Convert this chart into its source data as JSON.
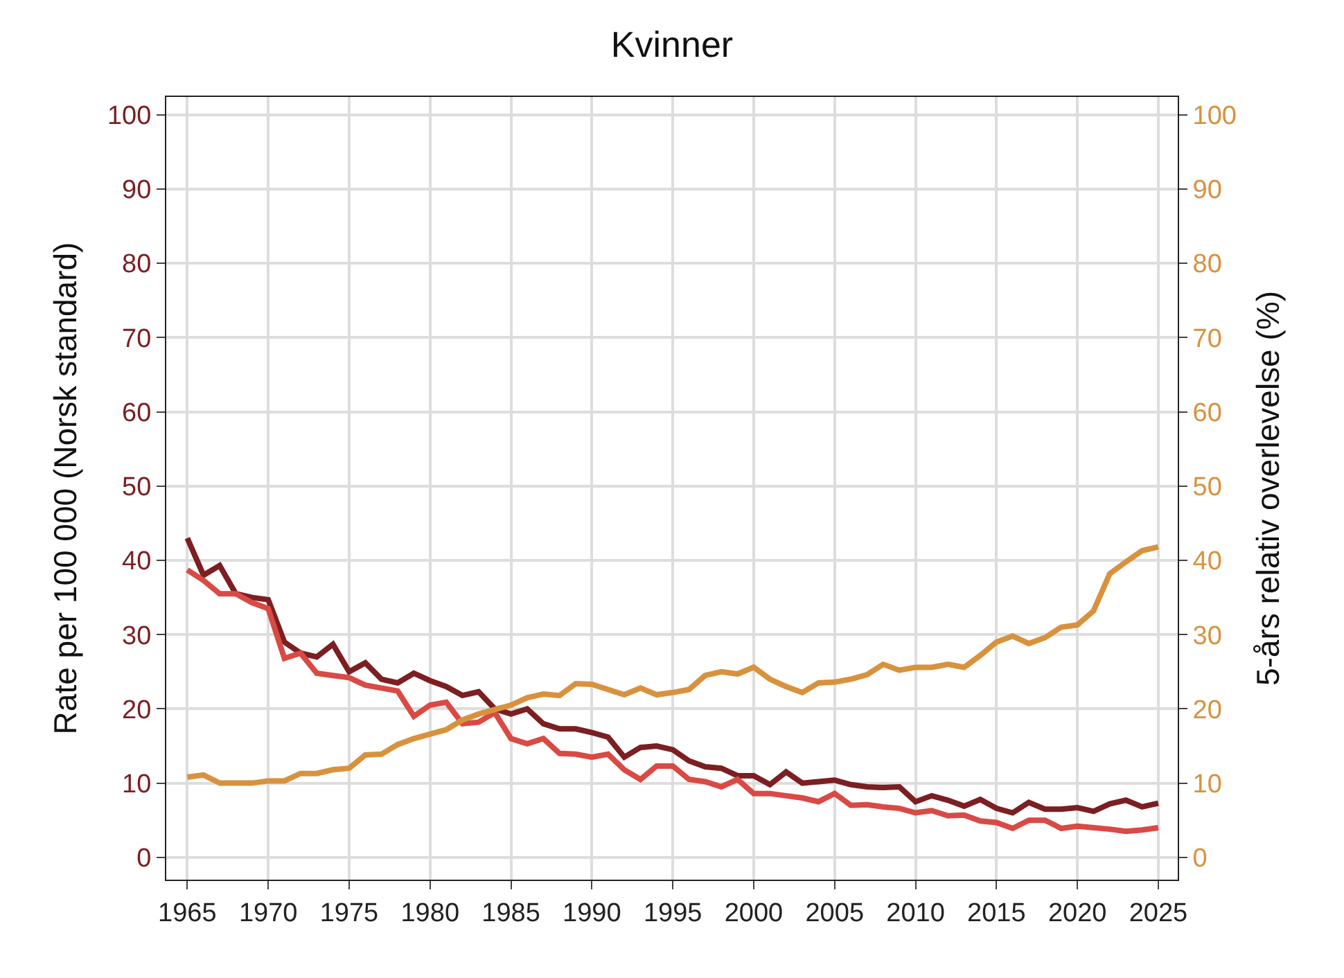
{
  "chart_data": {
    "type": "line",
    "title": "Kvinner",
    "ylabel": "Rate per 100 000 (Norsk standard)",
    "y2label": "5-års relativ overlevelse (%)",
    "x": [
      1965,
      1966,
      1967,
      1968,
      1969,
      1970,
      1971,
      1972,
      1973,
      1974,
      1975,
      1976,
      1977,
      1978,
      1979,
      1980,
      1981,
      1982,
      1983,
      1984,
      1985,
      1986,
      1987,
      1988,
      1989,
      1990,
      1991,
      1992,
      1993,
      1994,
      1995,
      1996,
      1997,
      1998,
      1999,
      2000,
      2001,
      2002,
      2003,
      2004,
      2005,
      2006,
      2007,
      2008,
      2009,
      2010,
      2011,
      2012,
      2013,
      2014,
      2015,
      2016,
      2017,
      2018,
      2019,
      2020,
      2021,
      2022,
      2023,
      2024,
      2025
    ],
    "series": [
      {
        "color": "#7b1f22",
        "values": [
          43,
          38,
          39.3,
          35.5,
          35,
          34.7,
          29,
          27.5,
          27,
          28.7,
          25,
          26.2,
          24,
          23.5,
          24.8,
          23.8,
          23,
          21.8,
          22.3,
          20,
          19.3,
          20,
          18,
          17.3,
          17.3,
          16.8,
          16.2,
          13.5,
          14.8,
          15,
          14.5,
          13,
          12.2,
          12,
          11,
          11,
          9.8,
          11.5,
          10,
          10.2,
          10.4,
          9.8,
          9.5,
          9.4,
          9.5,
          7.5,
          8.3,
          7.7,
          6.9,
          7.8,
          6.6,
          6,
          7.4,
          6.5,
          6.5,
          6.7,
          6.2,
          7.2,
          7.7,
          6.8,
          7.3
        ]
      },
      {
        "color": "#d94a45",
        "values": [
          38.7,
          37.3,
          35.5,
          35.5,
          34.3,
          33.5,
          26.8,
          27.5,
          24.8,
          24.5,
          24.2,
          23.2,
          22.8,
          22.4,
          19,
          20.5,
          20.9,
          18,
          18.2,
          19.5,
          16,
          15.3,
          16,
          14,
          13.9,
          13.5,
          13.9,
          11.8,
          10.5,
          12.3,
          12.3,
          10.5,
          10.2,
          9.5,
          10.5,
          8.6,
          8.6,
          8.3,
          8,
          7.5,
          8.6,
          7,
          7.1,
          6.8,
          6.6,
          6,
          6.3,
          5.6,
          5.7,
          4.9,
          4.7,
          3.9,
          5,
          5,
          3.9,
          4.2,
          4,
          3.8,
          3.5,
          3.7,
          4
        ]
      },
      {
        "color": "#d8923e",
        "axis": "y2",
        "values": [
          10.8,
          11.1,
          10,
          10,
          10,
          10.3,
          10.3,
          11.3,
          11.3,
          11.8,
          12,
          13.8,
          13.9,
          15.2,
          16,
          16.6,
          17.2,
          18.5,
          19.3,
          19.9,
          20.5,
          21.5,
          22,
          21.8,
          23.4,
          23.3,
          22.6,
          21.9,
          22.8,
          21.9,
          22.2,
          22.6,
          24.5,
          25,
          24.7,
          25.6,
          24,
          23,
          22.2,
          23.5,
          23.6,
          24,
          24.6,
          26,
          25.2,
          25.6,
          25.6,
          26,
          25.6,
          27.2,
          29,
          29.8,
          28.8,
          29.6,
          31,
          31.3,
          33.2,
          38.2,
          39.8,
          41.3,
          41.8
        ]
      }
    ],
    "xlim": [
      1963.7,
      2026.2
    ],
    "xticks": [
      1965,
      1970,
      1975,
      1980,
      1985,
      1990,
      1995,
      2000,
      2005,
      2010,
      2015,
      2020,
      2025
    ],
    "ylim": [
      -3,
      102.4
    ],
    "yticks": [
      0,
      10,
      20,
      30,
      40,
      50,
      60,
      70,
      80,
      90,
      100
    ],
    "y2lim": [
      -3,
      102.4
    ],
    "y2ticks": [
      0,
      10,
      20,
      30,
      40,
      50,
      60,
      70,
      80,
      90,
      100
    ],
    "grid": true,
    "line_style": "solid"
  }
}
